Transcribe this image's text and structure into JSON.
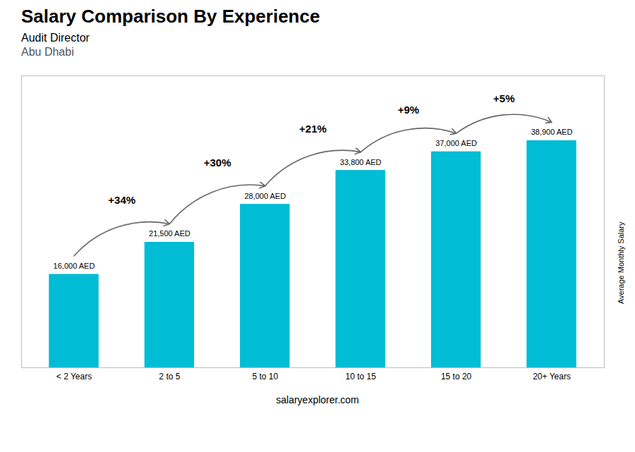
{
  "chart_data": {
    "type": "bar",
    "title": "Salary Comparison By Experience",
    "subtitle": "Audit Director",
    "location": "Abu Dhabi",
    "caption": "salaryexplorer.com",
    "ylabel": "Average Monthly Salary",
    "categories": [
      "< 2 Years",
      "2 to 5",
      "5 to 10",
      "10 to 15",
      "15 to 20",
      "20+ Years"
    ],
    "values": [
      16000,
      21500,
      28000,
      33800,
      37000,
      38900
    ],
    "value_labels": [
      "16,000 AED",
      "21,500 AED",
      "28,000 AED",
      "33,800 AED",
      "37,000 AED",
      "38,900 AED"
    ],
    "data_labels": true,
    "color": "#00bcd4",
    "annotations": [
      {
        "text": "+34%",
        "from": "< 2 Years",
        "to": "2 to 5"
      },
      {
        "text": "+30%",
        "from": "2 to 5",
        "to": "5 to 10"
      },
      {
        "text": "+21%",
        "from": "5 to 10",
        "to": "10 to 15"
      },
      {
        "text": "+9%",
        "from": "10 to 15",
        "to": "15 to 20"
      },
      {
        "text": "+5%",
        "from": "15 to 20",
        "to": "20+ Years"
      }
    ],
    "ylim": [
      0,
      50000
    ],
    "yticks": [],
    "tick_labels": "x"
  }
}
